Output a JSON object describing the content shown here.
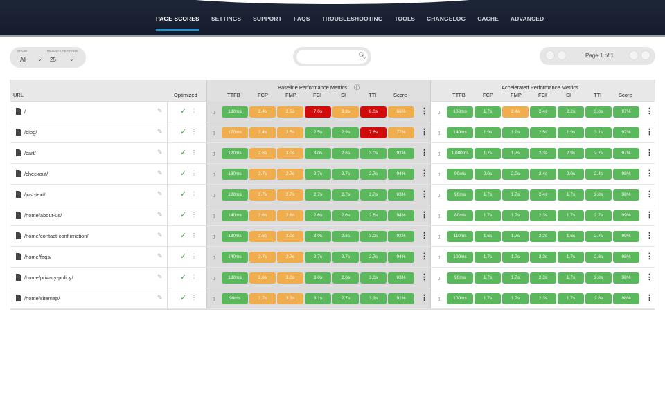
{
  "nav": [
    "PAGE SCORES",
    "SETTINGS",
    "SUPPORT",
    "FAQS",
    "TROUBLESHOOTING",
    "TOOLS",
    "CHANGELOG",
    "CACHE",
    "ADVANCED"
  ],
  "controls": {
    "show_label": "SHOW",
    "show_value": "All",
    "rpp_label": "RESULTS PER PAGE",
    "rpp_value": "25",
    "search_placeholder": "",
    "page_text": "Page 1 of 1"
  },
  "headers": {
    "url": "URL",
    "optimized": "Optimized",
    "baseline": "Baseline Performance Metrics",
    "accelerated": "Accelerated Performance Metrics",
    "metrics": [
      "TTFB",
      "FCP",
      "FMP",
      "FCI",
      "SI",
      "TTI",
      "Score"
    ]
  },
  "colors": {
    "good": "#5cb85c",
    "warn": "#f0ad4e",
    "bad": "#d10a0a",
    "accent": "#1f8fd0"
  },
  "rows": [
    {
      "url": "/",
      "base": [
        [
          "130ms",
          "g"
        ],
        [
          "2.4s",
          "o"
        ],
        [
          "2.5s",
          "o"
        ],
        [
          "7.0s",
          "r"
        ],
        [
          "3.9s",
          "o"
        ],
        [
          "8.0s",
          "r"
        ],
        [
          "66%",
          "o"
        ]
      ],
      "acc": [
        [
          "100ms",
          "g"
        ],
        [
          "1.7s",
          "g"
        ],
        [
          "2.4s",
          "o"
        ],
        [
          "2.4s",
          "g"
        ],
        [
          "2.2s",
          "g"
        ],
        [
          "3.0s",
          "g"
        ],
        [
          "97%",
          "g"
        ]
      ]
    },
    {
      "url": "/blog/",
      "base": [
        [
          "170ms",
          "o"
        ],
        [
          "2.4s",
          "o"
        ],
        [
          "2.5s",
          "o"
        ],
        [
          "2.5s",
          "g"
        ],
        [
          "2.9s",
          "g"
        ],
        [
          "7.6s",
          "r"
        ],
        [
          "77%",
          "o"
        ]
      ],
      "acc": [
        [
          "140ms",
          "g"
        ],
        [
          "1.9s",
          "g"
        ],
        [
          "1.9s",
          "g"
        ],
        [
          "2.5s",
          "g"
        ],
        [
          "1.9s",
          "g"
        ],
        [
          "3.1s",
          "g"
        ],
        [
          "97%",
          "g"
        ]
      ]
    },
    {
      "url": "/cart/",
      "base": [
        [
          "120ms",
          "g"
        ],
        [
          "2.6s",
          "o"
        ],
        [
          "3.0s",
          "o"
        ],
        [
          "3.0s",
          "g"
        ],
        [
          "2.6s",
          "g"
        ],
        [
          "3.0s",
          "g"
        ],
        [
          "92%",
          "g"
        ]
      ],
      "acc": [
        [
          "1,080ms",
          "g"
        ],
        [
          "1.7s",
          "g"
        ],
        [
          "1.7s",
          "g"
        ],
        [
          "2.3s",
          "g"
        ],
        [
          "2.9s",
          "g"
        ],
        [
          "2.7s",
          "g"
        ],
        [
          "97%",
          "g"
        ]
      ]
    },
    {
      "url": "/checkout/",
      "base": [
        [
          "130ms",
          "g"
        ],
        [
          "2.7s",
          "o"
        ],
        [
          "2.7s",
          "o"
        ],
        [
          "2.7s",
          "g"
        ],
        [
          "2.7s",
          "g"
        ],
        [
          "2.7s",
          "g"
        ],
        [
          "94%",
          "g"
        ]
      ],
      "acc": [
        [
          "90ms",
          "g"
        ],
        [
          "2.0s",
          "g"
        ],
        [
          "2.0s",
          "g"
        ],
        [
          "2.4s",
          "g"
        ],
        [
          "2.0s",
          "g"
        ],
        [
          "2.4s",
          "g"
        ],
        [
          "98%",
          "g"
        ]
      ]
    },
    {
      "url": "/just-text/",
      "base": [
        [
          "120ms",
          "g"
        ],
        [
          "2.7s",
          "o"
        ],
        [
          "2.7s",
          "o"
        ],
        [
          "2.7s",
          "g"
        ],
        [
          "2.7s",
          "g"
        ],
        [
          "2.7s",
          "g"
        ],
        [
          "93%",
          "g"
        ]
      ],
      "acc": [
        [
          "90ms",
          "g"
        ],
        [
          "1.7s",
          "g"
        ],
        [
          "1.7s",
          "g"
        ],
        [
          "2.4s",
          "g"
        ],
        [
          "1.7s",
          "g"
        ],
        [
          "2.8s",
          "g"
        ],
        [
          "98%",
          "g"
        ]
      ]
    },
    {
      "url": "/home/about-us/",
      "base": [
        [
          "140ms",
          "g"
        ],
        [
          "2.6s",
          "o"
        ],
        [
          "2.6s",
          "o"
        ],
        [
          "2.6s",
          "g"
        ],
        [
          "2.6s",
          "g"
        ],
        [
          "2.6s",
          "g"
        ],
        [
          "94%",
          "g"
        ]
      ],
      "acc": [
        [
          "80ms",
          "g"
        ],
        [
          "1.7s",
          "g"
        ],
        [
          "1.7s",
          "g"
        ],
        [
          "2.3s",
          "g"
        ],
        [
          "1.7s",
          "g"
        ],
        [
          "2.7s",
          "g"
        ],
        [
          "99%",
          "g"
        ]
      ]
    },
    {
      "url": "/home/contact-confirmation/",
      "base": [
        [
          "130ms",
          "g"
        ],
        [
          "2.6s",
          "o"
        ],
        [
          "3.0s",
          "o"
        ],
        [
          "3.0s",
          "g"
        ],
        [
          "2.6s",
          "g"
        ],
        [
          "3.0s",
          "g"
        ],
        [
          "92%",
          "g"
        ]
      ],
      "acc": [
        [
          "110ms",
          "g"
        ],
        [
          "1.6s",
          "g"
        ],
        [
          "1.7s",
          "g"
        ],
        [
          "2.2s",
          "g"
        ],
        [
          "1.6s",
          "g"
        ],
        [
          "2.7s",
          "g"
        ],
        [
          "99%",
          "g"
        ]
      ]
    },
    {
      "url": "/home/faqs/",
      "base": [
        [
          "140ms",
          "g"
        ],
        [
          "2.7s",
          "o"
        ],
        [
          "2.7s",
          "o"
        ],
        [
          "2.7s",
          "g"
        ],
        [
          "2.7s",
          "g"
        ],
        [
          "2.7s",
          "g"
        ],
        [
          "94%",
          "g"
        ]
      ],
      "acc": [
        [
          "100ms",
          "g"
        ],
        [
          "1.7s",
          "g"
        ],
        [
          "1.7s",
          "g"
        ],
        [
          "2.3s",
          "g"
        ],
        [
          "1.7s",
          "g"
        ],
        [
          "2.8s",
          "g"
        ],
        [
          "98%",
          "g"
        ]
      ]
    },
    {
      "url": "/home/privacy-policy/",
      "base": [
        [
          "130ms",
          "g"
        ],
        [
          "2.6s",
          "o"
        ],
        [
          "3.0s",
          "o"
        ],
        [
          "3.0s",
          "g"
        ],
        [
          "2.6s",
          "g"
        ],
        [
          "3.0s",
          "g"
        ],
        [
          "93%",
          "g"
        ]
      ],
      "acc": [
        [
          "90ms",
          "g"
        ],
        [
          "1.7s",
          "g"
        ],
        [
          "1.7s",
          "g"
        ],
        [
          "2.3s",
          "g"
        ],
        [
          "1.7s",
          "g"
        ],
        [
          "2.8s",
          "g"
        ],
        [
          "98%",
          "g"
        ]
      ]
    },
    {
      "url": "/home/sitemap/",
      "base": [
        [
          "90ms",
          "g"
        ],
        [
          "2.7s",
          "o"
        ],
        [
          "3.1s",
          "o"
        ],
        [
          "3.1s",
          "g"
        ],
        [
          "2.7s",
          "g"
        ],
        [
          "3.1s",
          "g"
        ],
        [
          "91%",
          "g"
        ]
      ],
      "acc": [
        [
          "100ms",
          "g"
        ],
        [
          "1.7s",
          "g"
        ],
        [
          "1.7s",
          "g"
        ],
        [
          "2.3s",
          "g"
        ],
        [
          "1.7s",
          "g"
        ],
        [
          "2.8s",
          "g"
        ],
        [
          "98%",
          "g"
        ]
      ]
    }
  ]
}
